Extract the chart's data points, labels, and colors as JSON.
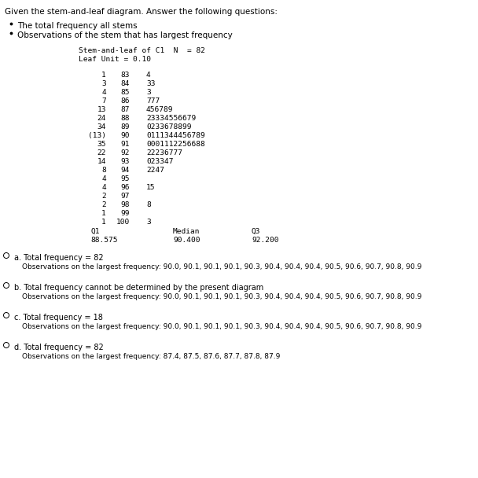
{
  "title_text": "Given the stem-and-leaf diagram. Answer the following questions:",
  "bullets": [
    "The total frequency all stems",
    "Observations of the stem that has largest frequency"
  ],
  "stem_header": "Stem-and-leaf of C1  N  = 82",
  "leaf_unit": "Leaf Unit = 0.10",
  "stem_rows": [
    {
      "depth": "1",
      "stem": "83",
      "leaves": "4"
    },
    {
      "depth": "3",
      "stem": "84",
      "leaves": "33"
    },
    {
      "depth": "4",
      "stem": "85",
      "leaves": "3"
    },
    {
      "depth": "7",
      "stem": "86",
      "leaves": "777"
    },
    {
      "depth": "13",
      "stem": "87",
      "leaves": "456789"
    },
    {
      "depth": "24",
      "stem": "88",
      "leaves": "23334556679"
    },
    {
      "depth": "34",
      "stem": "89",
      "leaves": "0233678899"
    },
    {
      "depth": "(13)",
      "stem": "90",
      "leaves": "0111344456789"
    },
    {
      "depth": "35",
      "stem": "91",
      "leaves": "0001112256688"
    },
    {
      "depth": "22",
      "stem": "92",
      "leaves": "22236777"
    },
    {
      "depth": "14",
      "stem": "93",
      "leaves": "023347"
    },
    {
      "depth": "8",
      "stem": "94",
      "leaves": "2247"
    },
    {
      "depth": "4",
      "stem": "95",
      "leaves": ""
    },
    {
      "depth": "4",
      "stem": "96",
      "leaves": "15"
    },
    {
      "depth": "2",
      "stem": "97",
      "leaves": ""
    },
    {
      "depth": "2",
      "stem": "98",
      "leaves": "8"
    },
    {
      "depth": "1",
      "stem": "99",
      "leaves": ""
    },
    {
      "depth": "1",
      "stem": "100",
      "leaves": "3"
    }
  ],
  "stats_row": {
    "q1_label": "Q1",
    "median_label": "Median",
    "q3_label": "Q3",
    "q1": "88.575",
    "median": "90.400",
    "q3": "92.200"
  },
  "options": [
    {
      "label": "a.",
      "line1": "Total frequency = 82",
      "line2": "Observations on the largest frequency: 90.0, 90.1, 90.1, 90.1, 90.3, 90.4, 90.4, 90.4, 90.5, 90.6, 90.7, 90.8, 90.9"
    },
    {
      "label": "b.",
      "line1": "Total frequency cannot be determined by the present diagram",
      "line2": "Observations on the largest frequency: 90.0, 90.1, 90.1, 90.1, 90.3, 90.4, 90.4, 90.4, 90.5, 90.6, 90.7, 90.8, 90.9"
    },
    {
      "label": "c.",
      "line1": "Total frequency = 18",
      "line2": "Observations on the largest frequency: 90.0, 90.1, 90.1, 90.1, 90.3, 90.4, 90.4, 90.4, 90.5, 90.6, 90.7, 90.8, 90.9"
    },
    {
      "label": "d.",
      "line1": "Total frequency = 82",
      "line2": "Observations on the largest frequency: 87.4, 87.5, 87.6, 87.7, 87.8, 87.9"
    }
  ],
  "bg_color": "#ffffff",
  "text_color": "#000000",
  "mono_font": "monospace",
  "normal_font": "DejaVu Sans",
  "font_size_title": 7.5,
  "font_size_bullet": 7.5,
  "font_size_mono": 6.8,
  "font_size_option_label": 7.0,
  "font_size_option_body": 6.5
}
